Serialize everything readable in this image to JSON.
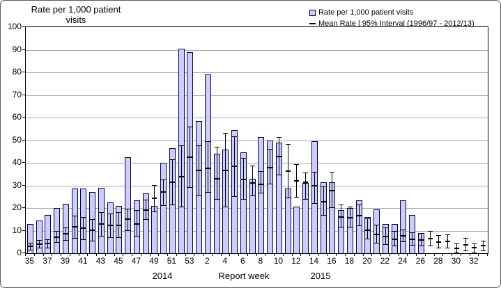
{
  "colors": {
    "bar_fill": "#ccccff",
    "bar_border": "#000040",
    "error_bar": "#000000",
    "gridline": "#a6a6a6",
    "axis": "#000000",
    "background": "#ffffff"
  },
  "chart_data": {
    "type": "bar",
    "title": "",
    "ylabel": "Rate per 1,000  patient visits",
    "ylabel_line1": "Rate per 1,000  patient",
    "ylabel_line2": "visits",
    "xlabel": "Report week",
    "ylim": [
      0,
      100
    ],
    "ytick_step": 10,
    "grid": true,
    "legend_position": "top-right",
    "legend": [
      {
        "marker": "bar-swatch",
        "label": "Rate per 1,000 patient visits"
      },
      {
        "marker": "dash",
        "label": "Mean Rate | 95% Interval (1996/97 - 2012/13)"
      }
    ],
    "year_labels": [
      {
        "text": "2014"
      },
      {
        "text": "2015"
      }
    ],
    "x_tick_label_rule": "odd weeks labeled in 2014, even weeks labeled in 2015",
    "weeks": [
      {
        "year": 2014,
        "week": 35,
        "rate": 13,
        "mean": 3,
        "lo": 1.5,
        "hi": 4.5
      },
      {
        "year": 2014,
        "week": 36,
        "rate": 14.5,
        "mean": 4,
        "lo": 2.4,
        "hi": 5.8
      },
      {
        "year": 2014,
        "week": 37,
        "rate": 17,
        "mean": 4.2,
        "lo": 2.4,
        "hi": 6.1
      },
      {
        "year": 2014,
        "week": 38,
        "rate": 20,
        "mean": 7,
        "lo": 4.8,
        "hi": 9.7
      },
      {
        "year": 2014,
        "week": 39,
        "rate": 22,
        "mean": 8.7,
        "lo": 5.8,
        "hi": 11.2
      },
      {
        "year": 2014,
        "week": 40,
        "rate": 28.5,
        "mean": 11.8,
        "lo": 6.6,
        "hi": 16.4
      },
      {
        "year": 2014,
        "week": 41,
        "rate": 28.5,
        "mean": 11.2,
        "lo": 6.1,
        "hi": 15.8
      },
      {
        "year": 2014,
        "week": 42,
        "rate": 27,
        "mean": 10.2,
        "lo": 5.5,
        "hi": 14.8
      },
      {
        "year": 2014,
        "week": 43,
        "rate": 29,
        "mean": 12.8,
        "lo": 7.4,
        "hi": 17.9
      },
      {
        "year": 2014,
        "week": 44,
        "rate": 22.5,
        "mean": 12.4,
        "lo": 7,
        "hi": 17.5
      },
      {
        "year": 2014,
        "week": 45,
        "rate": 21,
        "mean": 12.3,
        "lo": 6.9,
        "hi": 18.1
      },
      {
        "year": 2014,
        "week": 46,
        "rate": 42.5,
        "mean": 15,
        "lo": 10,
        "hi": 19.5
      },
      {
        "year": 2014,
        "week": 47,
        "rate": 23.5,
        "mean": 13,
        "lo": 7.5,
        "hi": 18.9
      },
      {
        "year": 2014,
        "week": 48,
        "rate": 26.5,
        "mean": 19.2,
        "lo": 15,
        "hi": 23.6
      },
      {
        "year": 2014,
        "week": 49,
        "rate": 21,
        "mean": 24.2,
        "lo": 18.4,
        "hi": 29.9
      },
      {
        "year": 2014,
        "week": 50,
        "rate": 40,
        "mean": 27,
        "lo": 21,
        "hi": 32.5
      },
      {
        "year": 2014,
        "week": 51,
        "rate": 46.5,
        "mean": 31.5,
        "lo": 21.5,
        "hi": 41.4
      },
      {
        "year": 2014,
        "week": 52,
        "rate": 90.5,
        "mean": 34,
        "lo": 20.4,
        "hi": 47.5
      },
      {
        "year": 2014,
        "week": 53,
        "rate": 89,
        "mean": 42.4,
        "lo": 29.1,
        "hi": 55.7
      },
      {
        "year": 2015,
        "week": 1,
        "rate": 58.5,
        "mean": 36.5,
        "lo": 25.5,
        "hi": 47.5
      },
      {
        "year": 2015,
        "week": 2,
        "rate": 79,
        "mean": 37.5,
        "lo": 27,
        "hi": 49.5
      },
      {
        "year": 2015,
        "week": 3,
        "rate": 44,
        "mean": 33,
        "lo": 24,
        "hi": 47
      },
      {
        "year": 2015,
        "week": 4,
        "rate": 46,
        "mean": 36.5,
        "lo": 20.5,
        "hi": 53
      },
      {
        "year": 2015,
        "week": 5,
        "rate": 54.5,
        "mean": 38.6,
        "lo": 25,
        "hi": 51.6
      },
      {
        "year": 2015,
        "week": 6,
        "rate": 44.5,
        "mean": 32.5,
        "lo": 24,
        "hi": 42
      },
      {
        "year": 2015,
        "week": 7,
        "rate": 33,
        "mean": 31.2,
        "lo": 25.5,
        "hi": 38.6
      },
      {
        "year": 2015,
        "week": 8,
        "rate": 51.5,
        "mean": 30.6,
        "lo": 26.5,
        "hi": 36.3
      },
      {
        "year": 2015,
        "week": 9,
        "rate": 50,
        "mean": 38,
        "lo": 30.6,
        "hi": 46
      },
      {
        "year": 2015,
        "week": 10,
        "rate": 49,
        "mean": 42.9,
        "lo": 34.7,
        "hi": 51.3
      },
      {
        "year": 2015,
        "week": 11,
        "rate": 28.5,
        "mean": 36.3,
        "lo": 24.5,
        "hi": 48.2
      },
      {
        "year": 2015,
        "week": 12,
        "rate": 20.5,
        "mean": 32,
        "lo": 24.7,
        "hi": 39.3
      },
      {
        "year": 2015,
        "week": 13,
        "rate": 31,
        "mean": 31.5,
        "lo": 23.7,
        "hi": 35.5
      },
      {
        "year": 2015,
        "week": 14,
        "rate": 49.5,
        "mean": 30,
        "lo": 22,
        "hi": 35.8
      },
      {
        "year": 2015,
        "week": 15,
        "rate": 31.5,
        "mean": 22.8,
        "lo": 16.7,
        "hi": 29.3
      },
      {
        "year": 2015,
        "week": 16,
        "rate": 31.5,
        "mean": 27.6,
        "lo": 20.1,
        "hi": 35.8
      },
      {
        "year": 2015,
        "week": 17,
        "rate": 19,
        "mean": 16.1,
        "lo": 11.5,
        "hi": 21.5
      },
      {
        "year": 2015,
        "week": 18,
        "rate": 20,
        "mean": 15.8,
        "lo": 11.5,
        "hi": 20.6
      },
      {
        "year": 2015,
        "week": 19,
        "rate": 23.5,
        "mean": 16.5,
        "lo": 12.3,
        "hi": 21.5
      },
      {
        "year": 2015,
        "week": 20,
        "rate": 16,
        "mean": 10.2,
        "lo": 6.3,
        "hi": 15.1
      },
      {
        "year": 2015,
        "week": 21,
        "rate": 19.5,
        "mean": 8.4,
        "lo": 4.6,
        "hi": 12.5
      },
      {
        "year": 2015,
        "week": 22,
        "rate": 13,
        "mean": 7.4,
        "lo": 3.9,
        "hi": 11.2
      },
      {
        "year": 2015,
        "week": 23,
        "rate": 13,
        "mean": 6.1,
        "lo": 3.3,
        "hi": 9.7
      },
      {
        "year": 2015,
        "week": 24,
        "rate": 23.5,
        "mean": 7.7,
        "lo": 5,
        "hi": 10.4
      },
      {
        "year": 2015,
        "week": 25,
        "rate": 17,
        "mean": 6.3,
        "lo": 3.6,
        "hi": 9
      },
      {
        "year": 2015,
        "week": 26,
        "rate": 9,
        "mean": 5.9,
        "lo": 3.3,
        "hi": 8.7
      },
      {
        "year": 2015,
        "week": 27,
        "rate": null,
        "mean": 6.5,
        "lo": 3.3,
        "hi": 9.8
      },
      {
        "year": 2015,
        "week": 28,
        "rate": null,
        "mean": 4.9,
        "lo": 2.2,
        "hi": 7.7
      },
      {
        "year": 2015,
        "week": 29,
        "rate": null,
        "mean": 5.3,
        "lo": 2.3,
        "hi": 8.2
      },
      {
        "year": 2015,
        "week": 30,
        "rate": null,
        "mean": 2.3,
        "lo": 0.2,
        "hi": 4.1
      },
      {
        "year": 2015,
        "week": 31,
        "rate": null,
        "mean": 3.8,
        "lo": 1,
        "hi": 6.6
      },
      {
        "year": 2015,
        "week": 32,
        "rate": null,
        "mean": 2.4,
        "lo": 0.2,
        "hi": 4.3
      },
      {
        "year": 2015,
        "week": 33,
        "rate": null,
        "mean": 3.3,
        "lo": 1,
        "hi": 5.3
      }
    ]
  }
}
